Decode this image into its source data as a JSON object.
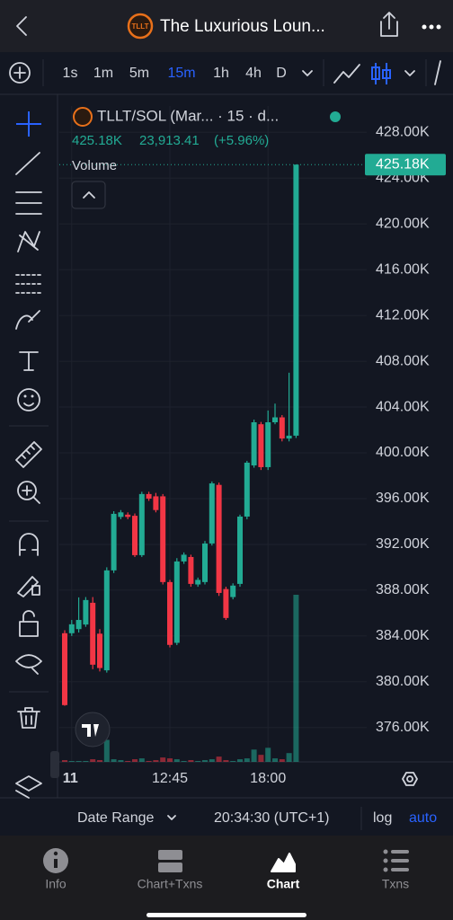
{
  "header": {
    "title": "The Luxurious Loun..."
  },
  "toolbar": {
    "intervals": [
      "1s",
      "1m",
      "5m",
      "15m",
      "1h",
      "4h",
      "D"
    ],
    "active_index": 3
  },
  "chart_data": {
    "type": "candlestick",
    "title": "TLLT/SOL (Mar... · 15 · d...",
    "legend_values": [
      "425.18K",
      "23,913.41",
      "(+5.96%)"
    ],
    "volume_label": "Volume",
    "categories": [
      null,
      "11",
      null,
      null,
      null,
      null,
      null,
      null,
      null,
      null,
      null,
      null,
      null,
      null,
      null,
      "12:45",
      null,
      null,
      null,
      null,
      null,
      null,
      null,
      null,
      null,
      null,
      null,
      null,
      null,
      "18:00",
      null,
      null,
      null,
      null
    ],
    "open": [
      384240,
      384240,
      384600,
      385000,
      386900,
      384200,
      381000,
      389730,
      394400,
      394600,
      394500,
      391060,
      396400,
      396200,
      396200,
      388710,
      383400,
      390510,
      390900,
      388500,
      388710,
      392080,
      397200,
      388100,
      387400,
      388550,
      394430,
      398900,
      402500,
      398750,
      402670,
      403100,
      401250,
      401500
    ],
    "high": [
      384500,
      385400,
      387370,
      387400,
      387400,
      384600,
      390000,
      394900,
      395000,
      394800,
      394700,
      396600,
      396600,
      396500,
      396400,
      388900,
      390800,
      391300,
      391100,
      389100,
      392300,
      397500,
      397400,
      388300,
      388600,
      394600,
      399300,
      402900,
      402700,
      403700,
      404300,
      403300,
      407000,
      425180
    ],
    "low": [
      377900,
      384000,
      384300,
      384800,
      381100,
      380900,
      380800,
      389500,
      394200,
      394200,
      390900,
      390900,
      395800,
      394800,
      388500,
      383000,
      383200,
      390300,
      388300,
      388300,
      388500,
      391900,
      387500,
      385400,
      387200,
      388300,
      394200,
      398700,
      398500,
      398500,
      402500,
      401000,
      401000,
      401300
    ],
    "close": [
      377960,
      385020,
      385400,
      387140,
      381490,
      381200,
      389730,
      394670,
      394800,
      394400,
      391060,
      396400,
      396000,
      395000,
      388710,
      383220,
      390510,
      391100,
      388550,
      388900,
      392080,
      397330,
      387760,
      385570,
      388400,
      394430,
      399140,
      402670,
      398750,
      402670,
      403100,
      401250,
      401500,
      425180
    ],
    "volume": [
      2,
      1,
      1,
      1,
      3,
      2,
      25,
      3,
      2,
      1,
      3,
      4,
      1,
      2,
      5,
      4,
      3,
      1,
      2,
      1,
      2,
      3,
      6,
      2,
      1,
      3,
      4,
      14,
      8,
      16,
      4,
      3,
      10,
      190
    ],
    "ylim": [
      373000,
      430300
    ],
    "yticks": [
      {
        "value": 376000,
        "label": "376.00K"
      },
      {
        "value": 380000,
        "label": "380.00K"
      },
      {
        "value": 384000,
        "label": "384.00K"
      },
      {
        "value": 388000,
        "label": "388.00K"
      },
      {
        "value": 392000,
        "label": "392.00K"
      },
      {
        "value": 396000,
        "label": "396.00K"
      },
      {
        "value": 400000,
        "label": "400.00K"
      },
      {
        "value": 404000,
        "label": "404.00K"
      },
      {
        "value": 408000,
        "label": "408.00K"
      },
      {
        "value": 412000,
        "label": "412.00K"
      },
      {
        "value": 416000,
        "label": "416.00K"
      },
      {
        "value": 420000,
        "label": "420.00K"
      },
      {
        "value": 424000,
        "label": "424.00K"
      },
      {
        "value": 428000,
        "label": "428.00K"
      }
    ],
    "last_price": {
      "value": 425180,
      "label": "425.18K"
    },
    "colors": {
      "up": "#22ab94",
      "down": "#f23645"
    },
    "grid": true
  },
  "footer": {
    "date_range": "Date Range",
    "time": "20:34:30 (UTC+1)",
    "log": "log",
    "auto": "auto"
  },
  "tabs": [
    "Info",
    "Chart+Txns",
    "Chart",
    "Txns"
  ],
  "active_tab": 2
}
